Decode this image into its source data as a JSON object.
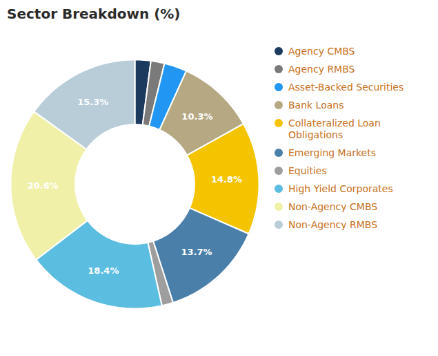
{
  "chart_data": {
    "type": "pie",
    "title": "Sector Breakdown (%)",
    "categories": [
      "Agency CMBS",
      "Agency RMBS",
      "Asset-Backed Securities",
      "Bank Loans",
      "Collateralized Loan\nObligations",
      "Emerging Markets",
      "Equities",
      "High Yield Corporates",
      "Non-Agency CMBS",
      "Non-Agency RMBS"
    ],
    "values": [
      2.1,
      1.8,
      3.0,
      10.3,
      14.8,
      13.7,
      1.5,
      18.4,
      20.6,
      15.3
    ],
    "value_labels": [
      null,
      null,
      null,
      "10.3%",
      "14.8%",
      "13.7%",
      null,
      "18.4%",
      "20.6%",
      "15.3%"
    ],
    "colors": [
      "#1b3a5e",
      "#7a7a7a",
      "#2196f3",
      "#b5a882",
      "#f5c400",
      "#4a7faa",
      "#9e9e9e",
      "#5bbde0",
      "#f0f0a8",
      "#b8cdd8"
    ],
    "data_labels": true,
    "legend": "right"
  }
}
